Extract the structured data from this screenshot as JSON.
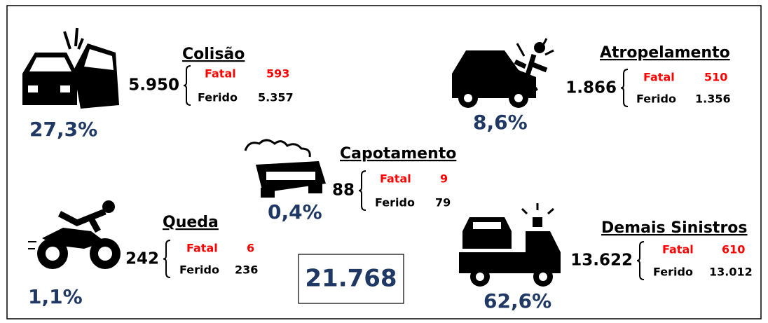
{
  "groups": [
    {
      "title": "Colisão",
      "total": "5.950",
      "share": "27,3%",
      "fatal_label": "Fatal",
      "fatal": "593",
      "injured_label": "Ferido",
      "injured": "5.357"
    },
    {
      "title": "Atropelamento",
      "total": "1.866",
      "share": "8,6%",
      "fatal_label": "Fatal",
      "fatal": "510",
      "injured_label": "Ferido",
      "injured": "1.356"
    },
    {
      "title": "Capotamento",
      "total": "88",
      "share": "0,4%",
      "fatal_label": "Fatal",
      "fatal": "9",
      "injured_label": "Ferido",
      "injured": "79"
    },
    {
      "title": "Queda",
      "total": "242",
      "share": "1,1%",
      "fatal_label": "Fatal",
      "fatal": "6",
      "injured_label": "Ferido",
      "injured": "236"
    },
    {
      "title": "Demais Sinistros",
      "total": "13.622",
      "share": "62,6%",
      "fatal_label": "Fatal",
      "fatal": "610",
      "injured_label": "Ferido",
      "injured": "13.012"
    }
  ],
  "grand_total": "21.768"
}
